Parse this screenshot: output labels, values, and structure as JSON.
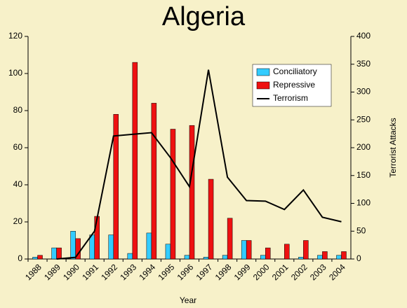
{
  "chart_data": {
    "type": "bar",
    "title": "Algeria",
    "xlabel": "Year",
    "y2label": "Terrorist Attacks",
    "categories": [
      "1988",
      "1989",
      "1990",
      "1991",
      "1992",
      "1993",
      "1994",
      "1995",
      "1996",
      "1997",
      "1998",
      "1999",
      "2000",
      "2001",
      "2002",
      "2003",
      "2004"
    ],
    "series": [
      {
        "name": "Conciliatory",
        "color": "#33ccff",
        "type": "bar",
        "values": [
          1,
          6,
          15,
          13,
          13,
          3,
          14,
          8,
          2,
          1,
          2,
          10,
          2,
          0,
          1,
          2,
          2
        ]
      },
      {
        "name": "Repressive",
        "color": "#ee1111",
        "type": "bar",
        "values": [
          2,
          6,
          11,
          23,
          78,
          106,
          84,
          70,
          72,
          43,
          22,
          10,
          6,
          8,
          10,
          4,
          4
        ]
      },
      {
        "name": "Terrorism",
        "color": "#000000",
        "type": "line",
        "axis": "y2",
        "values": [
          null,
          0,
          3,
          50,
          221,
          224,
          227,
          182,
          130,
          340,
          147,
          105,
          104,
          89,
          124,
          75,
          67
        ]
      }
    ],
    "ylim": [
      0,
      120
    ],
    "yticks": [
      0,
      20,
      40,
      60,
      80,
      100,
      120
    ],
    "y2lim": [
      0,
      400
    ],
    "y2ticks": [
      0,
      50,
      100,
      150,
      200,
      250,
      300,
      350,
      400
    ],
    "legend": "upper right"
  }
}
